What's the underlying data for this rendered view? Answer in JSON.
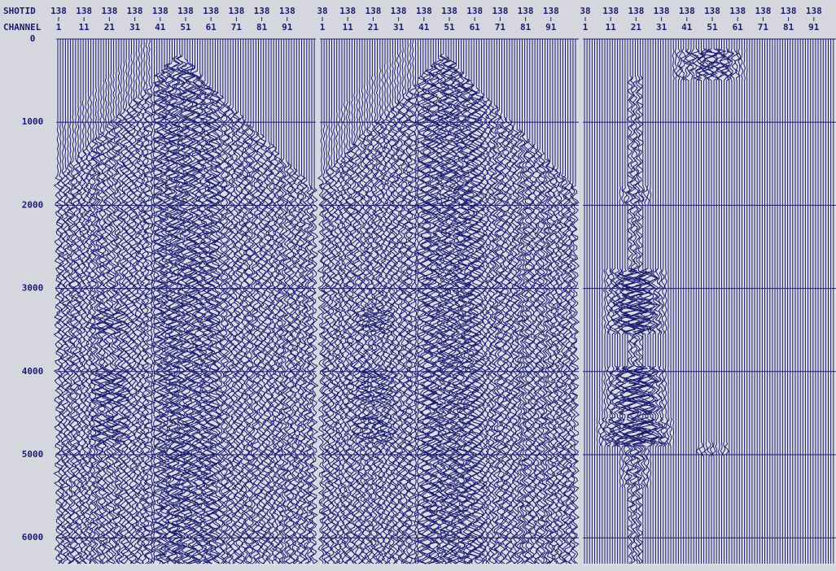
{
  "header": {
    "shotid_label": "SHOTID",
    "channel_label": "CHANNEL"
  },
  "panels": [
    {
      "shotids": [
        "138",
        "138",
        "138",
        "138",
        "138",
        "138",
        "138",
        "138",
        "138",
        "138"
      ],
      "channels": [
        "1",
        "11",
        "21",
        "31",
        "41",
        "51",
        "61",
        "71",
        "81",
        "91"
      ]
    },
    {
      "shotids": [
        "38",
        "138",
        "138",
        "138",
        "138",
        "138",
        "138",
        "138",
        "138",
        "138"
      ],
      "channels": [
        "1",
        "11",
        "21",
        "31",
        "41",
        "51",
        "61",
        "71",
        "81",
        "91"
      ]
    },
    {
      "shotids": [
        "38",
        "138",
        "138",
        "138",
        "138",
        "138",
        "138",
        "138",
        "138",
        "138"
      ],
      "channels": [
        "1",
        "11",
        "21",
        "31",
        "41",
        "51",
        "61",
        "71",
        "81",
        "91"
      ]
    }
  ],
  "time_axis": {
    "labels": [
      "0",
      "1000",
      "2000",
      "3000",
      "4000",
      "5000",
      "6000"
    ]
  }
}
